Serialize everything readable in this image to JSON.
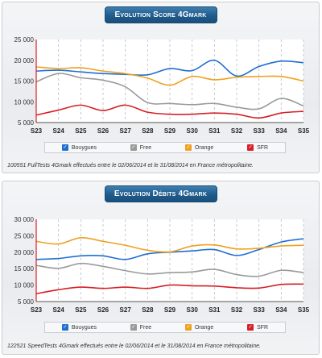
{
  "charts": [
    {
      "title": "Evolution Score 4Gmark",
      "footnote": "100551 FullTests 4Gmark effectués entre le 02/06/2014 et le 31/08/2014 en France métropolitaine."
    },
    {
      "title": "Evolution Débits 4Gmark",
      "footnote": "122521 SpeedTests 4Gmark effectués entre le 02/06/2014 et le 31/08/2014 en France métropolitaine."
    }
  ],
  "legend": [
    {
      "name": "Bouygues",
      "color": "#1f6fd0"
    },
    {
      "name": "Free",
      "color": "#9a9a9a"
    },
    {
      "name": "Orange",
      "color": "#f0a020"
    },
    {
      "name": "SFR",
      "color": "#d61f26"
    }
  ],
  "chart_data": [
    {
      "type": "line",
      "title": "Evolution Score 4Gmark",
      "x": [
        "S23",
        "S24",
        "S25",
        "S26",
        "S27",
        "S28",
        "S29",
        "S30",
        "S31",
        "S32",
        "S33",
        "S34",
        "S35"
      ],
      "ylim": [
        5000,
        25000
      ],
      "yticks": [
        "5 000",
        "10 000",
        "15 000",
        "20 000",
        "25 000"
      ],
      "grid": "vertical dashed",
      "legend_position": "bottom",
      "series": [
        {
          "name": "Bouygues",
          "color": "#1f6fd0",
          "values": [
            17400,
            17600,
            17200,
            16800,
            16600,
            16500,
            18000,
            17500,
            20000,
            16200,
            18500,
            19800,
            19400
          ]
        },
        {
          "name": "Free",
          "color": "#9a9a9a",
          "values": [
            14800,
            16800,
            15800,
            15200,
            13600,
            9800,
            9600,
            9300,
            9600,
            8700,
            8300,
            10800,
            9000
          ]
        },
        {
          "name": "Orange",
          "color": "#f0a020",
          "values": [
            18400,
            18000,
            18200,
            17400,
            16800,
            15700,
            14000,
            16100,
            15300,
            15900,
            16100,
            16100,
            15000
          ]
        },
        {
          "name": "SFR",
          "color": "#d61f26",
          "values": [
            6800,
            8000,
            9200,
            7900,
            9200,
            7500,
            7000,
            7000,
            7300,
            7000,
            6100,
            7300,
            7700
          ]
        }
      ]
    },
    {
      "type": "line",
      "title": "Evolution Débits 4Gmark",
      "x": [
        "S23",
        "S24",
        "S25",
        "S26",
        "S27",
        "S28",
        "S29",
        "S30",
        "S31",
        "S32",
        "S33",
        "S34",
        "S35"
      ],
      "ylim": [
        5000,
        30000
      ],
      "yticks": [
        "5 000",
        "10 000",
        "15 000",
        "20 000",
        "25 000",
        "30 000"
      ],
      "grid": "vertical dashed",
      "legend_position": "bottom",
      "series": [
        {
          "name": "Bouygues",
          "color": "#1f6fd0",
          "values": [
            17800,
            18100,
            18900,
            18900,
            17800,
            19500,
            20000,
            20400,
            20800,
            19000,
            20800,
            23100,
            24100
          ]
        },
        {
          "name": "Free",
          "color": "#9a9a9a",
          "values": [
            16000,
            15100,
            16600,
            15700,
            14400,
            13400,
            13800,
            14000,
            14800,
            13200,
            12700,
            14500,
            13800
          ]
        },
        {
          "name": "Orange",
          "color": "#f0a020",
          "values": [
            23300,
            22500,
            24400,
            23300,
            22100,
            20600,
            20100,
            21900,
            22200,
            21000,
            21200,
            21900,
            22100
          ]
        },
        {
          "name": "SFR",
          "color": "#d61f26",
          "values": [
            7400,
            8600,
            9400,
            9000,
            9400,
            9000,
            10000,
            9800,
            9700,
            9200,
            9100,
            10200,
            10300
          ]
        }
      ]
    }
  ]
}
